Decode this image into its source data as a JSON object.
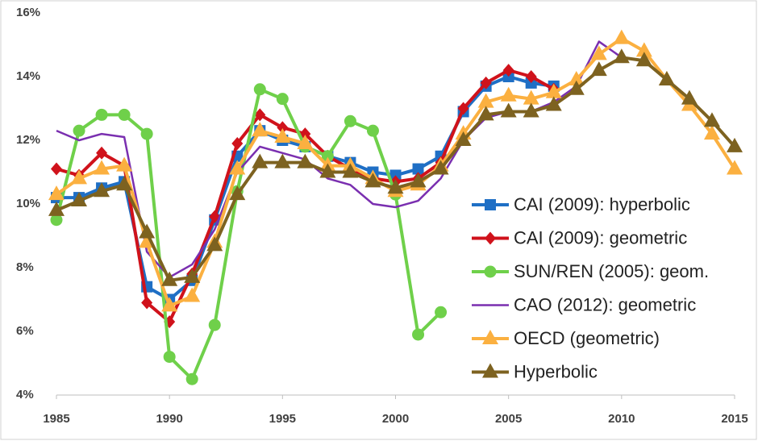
{
  "chart_data": {
    "type": "line",
    "x": [
      1985,
      1986,
      1987,
      1988,
      1989,
      1990,
      1991,
      1992,
      1993,
      1994,
      1995,
      1996,
      1997,
      1998,
      1999,
      2000,
      2001,
      2002,
      2003,
      2004,
      2005,
      2006,
      2007,
      2008,
      2009,
      2010,
      2011,
      2012,
      2013,
      2014,
      2015
    ],
    "xlim": [
      1985,
      2015
    ],
    "xticks": [
      1985,
      1990,
      1995,
      2000,
      2005,
      2010,
      2015
    ],
    "ylim": [
      4,
      16
    ],
    "yticks": [
      {
        "value": 4,
        "label": "4%"
      },
      {
        "value": 6,
        "label": "6%"
      },
      {
        "value": 8,
        "label": "8%"
      },
      {
        "value": 10,
        "label": "10%"
      },
      {
        "value": 12,
        "label": "12%"
      },
      {
        "value": 14,
        "label": "14%"
      },
      {
        "value": 16,
        "label": "16%"
      }
    ],
    "grid": false,
    "legend": "lower right",
    "series": [
      {
        "name": "CAI (2009): hyperbolic",
        "color": "#1f6fc5",
        "marker": "square",
        "values": [
          10.2,
          10.2,
          10.5,
          10.7,
          7.4,
          7.0,
          7.6,
          9.5,
          11.5,
          12.3,
          12.0,
          11.8,
          11.5,
          11.3,
          11.0,
          10.9,
          11.1,
          11.5,
          12.9,
          13.7,
          14.0,
          13.8,
          13.7,
          null,
          null,
          null,
          null,
          null,
          null,
          null,
          null
        ]
      },
      {
        "name": "CAI (2009): geometric",
        "color": "#d0121b",
        "marker": "diamond",
        "values": [
          11.1,
          10.9,
          11.6,
          11.2,
          6.9,
          6.3,
          7.8,
          9.6,
          11.9,
          12.8,
          12.4,
          12.2,
          11.5,
          11.1,
          10.8,
          10.7,
          10.8,
          11.3,
          13.0,
          13.8,
          14.2,
          14.0,
          13.6,
          null,
          null,
          null,
          null,
          null,
          null,
          null,
          null
        ]
      },
      {
        "name": "SUN/REN (2005): geom.",
        "color": "#6fd04a",
        "marker": "circle",
        "values": [
          9.5,
          12.3,
          12.8,
          12.8,
          12.2,
          5.2,
          4.5,
          6.2,
          10.4,
          13.6,
          13.3,
          11.8,
          11.5,
          12.6,
          12.3,
          10.3,
          5.9,
          6.6,
          null,
          null,
          null,
          null,
          null,
          null,
          null,
          null,
          null,
          null,
          null,
          null,
          null
        ]
      },
      {
        "name": "CAO (2012): geometric",
        "color": "#7a2fb0",
        "marker": "none",
        "values": [
          12.3,
          12.0,
          12.2,
          12.1,
          8.5,
          7.7,
          8.1,
          9.2,
          11.0,
          11.8,
          11.6,
          11.4,
          10.8,
          10.6,
          10.0,
          9.9,
          10.1,
          10.8,
          12.0,
          12.7,
          12.9,
          12.9,
          13.2,
          13.7,
          15.1,
          14.6,
          null,
          null,
          null,
          null,
          null
        ]
      },
      {
        "name": "OECD (geometric)",
        "color": "#fbb040",
        "marker": "triangle",
        "values": [
          10.3,
          10.8,
          11.1,
          11.2,
          8.8,
          6.8,
          7.1,
          8.8,
          11.1,
          12.3,
          12.1,
          11.9,
          11.2,
          11.2,
          10.8,
          10.4,
          10.6,
          11.2,
          12.2,
          13.2,
          13.4,
          13.3,
          13.5,
          13.9,
          14.7,
          15.2,
          14.8,
          13.9,
          13.1,
          12.2,
          11.1
        ]
      },
      {
        "name": "Hyperbolic",
        "color": "#7d6220",
        "marker": "triangle",
        "values": [
          9.8,
          10.1,
          10.4,
          10.6,
          9.1,
          7.6,
          7.7,
          8.7,
          10.3,
          11.3,
          11.3,
          11.3,
          11.0,
          11.0,
          10.7,
          10.5,
          10.7,
          11.1,
          12.0,
          12.8,
          12.9,
          12.9,
          13.1,
          13.6,
          14.2,
          14.6,
          14.5,
          13.9,
          13.3,
          12.6,
          11.8
        ]
      }
    ]
  }
}
